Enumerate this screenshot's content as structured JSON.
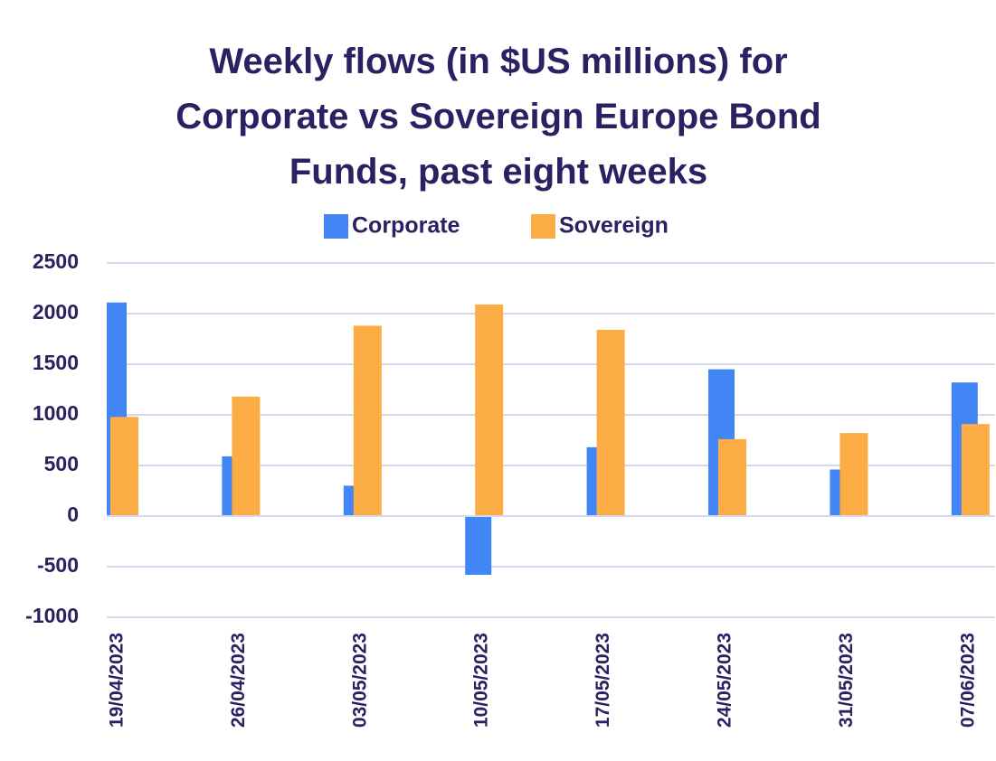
{
  "chart_data": {
    "type": "bar",
    "title": "Weekly flows (in $US millions) for Corporate vs Sovereign Europe Bond Funds, past eight weeks",
    "categories": [
      "19/04/2023",
      "26/04/2023",
      "03/05/2023",
      "10/05/2023",
      "17/05/2023",
      "24/05/2023",
      "31/05/2023",
      "07/06/2023"
    ],
    "series": [
      {
        "name": "Corporate",
        "color": "#4285f4",
        "values": [
          2110,
          590,
          300,
          -580,
          680,
          1450,
          460,
          1320
        ]
      },
      {
        "name": "Sovereign",
        "color": "#fbac45",
        "values": [
          980,
          1180,
          1880,
          2090,
          1840,
          760,
          820,
          910
        ]
      }
    ],
    "ylim": [
      -1000,
      2500
    ],
    "yticks": [
      -1000,
      -500,
      0,
      500,
      1000,
      1500,
      2000,
      2500
    ],
    "grid": true,
    "legend": "top"
  }
}
